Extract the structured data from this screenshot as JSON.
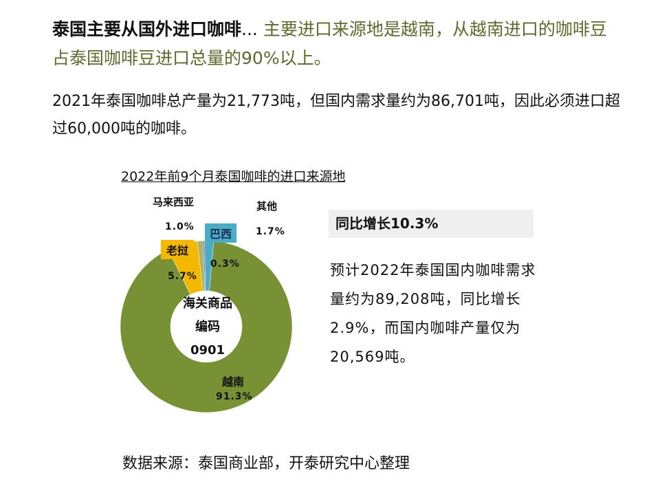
{
  "headline": {
    "bold": "泰国主要从国外进口咖啡",
    "ellipsis": "...",
    "green": "主要进口来源地是越南，从越南进口的咖啡豆占泰国咖啡豆进口总量的90%以上。"
  },
  "paragraph": "2021年泰国咖啡总产量为21,773吨，但国内需求量约为86,701吨，因此必须进口超过60,000吨的咖啡。",
  "chart_data": {
    "type": "pie",
    "subtype": "donut",
    "title": "2022年前9个月泰国咖啡的进口来源地",
    "center_label": [
      "海关商品",
      "编码",
      "0901"
    ],
    "categories": [
      "越南",
      "老挝",
      "马来西亚",
      "巴西",
      "其他"
    ],
    "values": [
      91.3,
      5.7,
      1.0,
      0.3,
      1.7
    ],
    "value_labels": [
      "91.3%",
      "5.7%",
      "1.0%",
      "0.3%",
      "1.7%"
    ],
    "colors": [
      "#789135",
      "#f5b800",
      "#a9b36a",
      "#7a6fb0",
      "#4bacc6"
    ]
  },
  "side": {
    "yoy": "同比增长10.3%",
    "forecast": "预计2022年泰国国内咖啡需求量约为89,208吨，同比增长2.9%，而国内咖啡产量仅为20,569吨。"
  },
  "source": "数据来源：泰国商业部，开泰研究中心整理"
}
